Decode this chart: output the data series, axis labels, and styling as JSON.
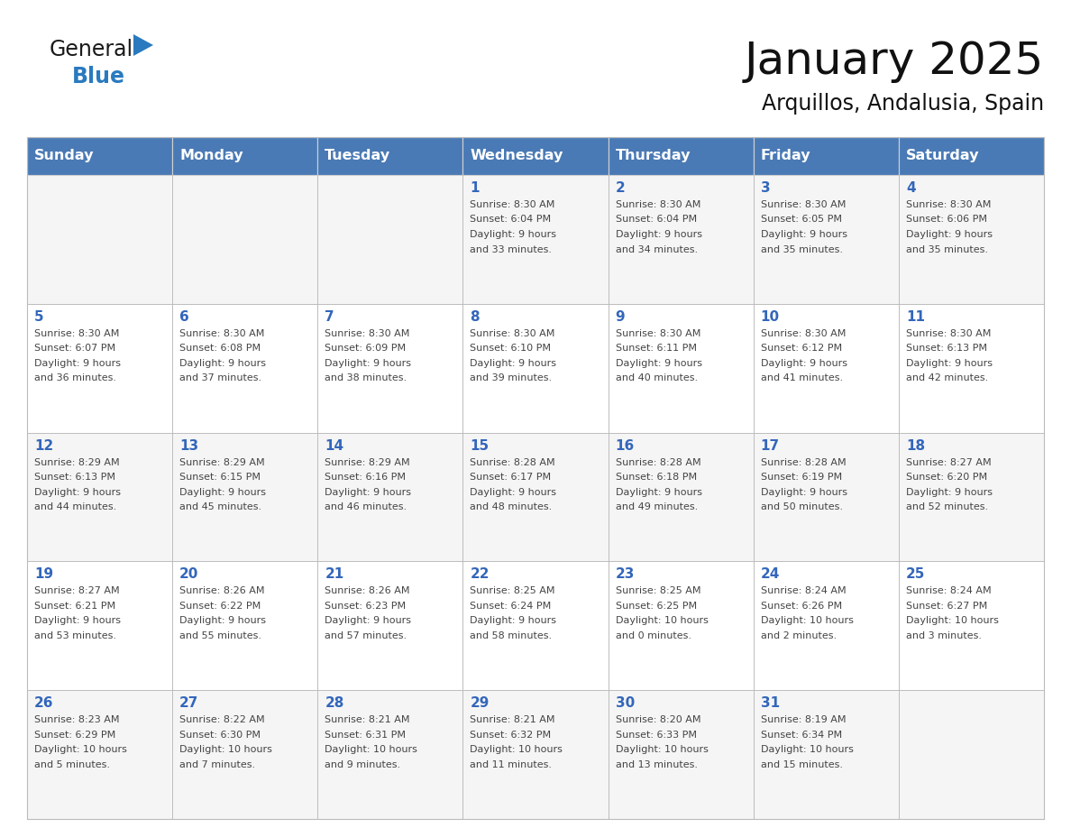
{
  "title": "January 2025",
  "subtitle": "Arquillos, Andalusia, Spain",
  "days_of_week": [
    "Sunday",
    "Monday",
    "Tuesday",
    "Wednesday",
    "Thursday",
    "Friday",
    "Saturday"
  ],
  "header_bg": "#4a7ab5",
  "header_text": "#ffffff",
  "cell_bg_even": "#f5f5f5",
  "cell_bg_odd": "#ffffff",
  "cell_border": "#bbbbbb",
  "day_number_color": "#3366bb",
  "info_text_color": "#444444",
  "title_color": "#111111",
  "logo_general_color": "#1a1a1a",
  "logo_blue_color": "#2a7abf",
  "calendar_data": [
    [
      null,
      null,
      null,
      {
        "day": 1,
        "sunrise": "8:30 AM",
        "sunset": "6:04 PM",
        "daylight": "9 hours",
        "daylight2": "and 33 minutes."
      },
      {
        "day": 2,
        "sunrise": "8:30 AM",
        "sunset": "6:04 PM",
        "daylight": "9 hours",
        "daylight2": "and 34 minutes."
      },
      {
        "day": 3,
        "sunrise": "8:30 AM",
        "sunset": "6:05 PM",
        "daylight": "9 hours",
        "daylight2": "and 35 minutes."
      },
      {
        "day": 4,
        "sunrise": "8:30 AM",
        "sunset": "6:06 PM",
        "daylight": "9 hours",
        "daylight2": "and 35 minutes."
      }
    ],
    [
      {
        "day": 5,
        "sunrise": "8:30 AM",
        "sunset": "6:07 PM",
        "daylight": "9 hours",
        "daylight2": "and 36 minutes."
      },
      {
        "day": 6,
        "sunrise": "8:30 AM",
        "sunset": "6:08 PM",
        "daylight": "9 hours",
        "daylight2": "and 37 minutes."
      },
      {
        "day": 7,
        "sunrise": "8:30 AM",
        "sunset": "6:09 PM",
        "daylight": "9 hours",
        "daylight2": "and 38 minutes."
      },
      {
        "day": 8,
        "sunrise": "8:30 AM",
        "sunset": "6:10 PM",
        "daylight": "9 hours",
        "daylight2": "and 39 minutes."
      },
      {
        "day": 9,
        "sunrise": "8:30 AM",
        "sunset": "6:11 PM",
        "daylight": "9 hours",
        "daylight2": "and 40 minutes."
      },
      {
        "day": 10,
        "sunrise": "8:30 AM",
        "sunset": "6:12 PM",
        "daylight": "9 hours",
        "daylight2": "and 41 minutes."
      },
      {
        "day": 11,
        "sunrise": "8:30 AM",
        "sunset": "6:13 PM",
        "daylight": "9 hours",
        "daylight2": "and 42 minutes."
      }
    ],
    [
      {
        "day": 12,
        "sunrise": "8:29 AM",
        "sunset": "6:13 PM",
        "daylight": "9 hours",
        "daylight2": "and 44 minutes."
      },
      {
        "day": 13,
        "sunrise": "8:29 AM",
        "sunset": "6:15 PM",
        "daylight": "9 hours",
        "daylight2": "and 45 minutes."
      },
      {
        "day": 14,
        "sunrise": "8:29 AM",
        "sunset": "6:16 PM",
        "daylight": "9 hours",
        "daylight2": "and 46 minutes."
      },
      {
        "day": 15,
        "sunrise": "8:28 AM",
        "sunset": "6:17 PM",
        "daylight": "9 hours",
        "daylight2": "and 48 minutes."
      },
      {
        "day": 16,
        "sunrise": "8:28 AM",
        "sunset": "6:18 PM",
        "daylight": "9 hours",
        "daylight2": "and 49 minutes."
      },
      {
        "day": 17,
        "sunrise": "8:28 AM",
        "sunset": "6:19 PM",
        "daylight": "9 hours",
        "daylight2": "and 50 minutes."
      },
      {
        "day": 18,
        "sunrise": "8:27 AM",
        "sunset": "6:20 PM",
        "daylight": "9 hours",
        "daylight2": "and 52 minutes."
      }
    ],
    [
      {
        "day": 19,
        "sunrise": "8:27 AM",
        "sunset": "6:21 PM",
        "daylight": "9 hours",
        "daylight2": "and 53 minutes."
      },
      {
        "day": 20,
        "sunrise": "8:26 AM",
        "sunset": "6:22 PM",
        "daylight": "9 hours",
        "daylight2": "and 55 minutes."
      },
      {
        "day": 21,
        "sunrise": "8:26 AM",
        "sunset": "6:23 PM",
        "daylight": "9 hours",
        "daylight2": "and 57 minutes."
      },
      {
        "day": 22,
        "sunrise": "8:25 AM",
        "sunset": "6:24 PM",
        "daylight": "9 hours",
        "daylight2": "and 58 minutes."
      },
      {
        "day": 23,
        "sunrise": "8:25 AM",
        "sunset": "6:25 PM",
        "daylight": "10 hours",
        "daylight2": "and 0 minutes."
      },
      {
        "day": 24,
        "sunrise": "8:24 AM",
        "sunset": "6:26 PM",
        "daylight": "10 hours",
        "daylight2": "and 2 minutes."
      },
      {
        "day": 25,
        "sunrise": "8:24 AM",
        "sunset": "6:27 PM",
        "daylight": "10 hours",
        "daylight2": "and 3 minutes."
      }
    ],
    [
      {
        "day": 26,
        "sunrise": "8:23 AM",
        "sunset": "6:29 PM",
        "daylight": "10 hours",
        "daylight2": "and 5 minutes."
      },
      {
        "day": 27,
        "sunrise": "8:22 AM",
        "sunset": "6:30 PM",
        "daylight": "10 hours",
        "daylight2": "and 7 minutes."
      },
      {
        "day": 28,
        "sunrise": "8:21 AM",
        "sunset": "6:31 PM",
        "daylight": "10 hours",
        "daylight2": "and 9 minutes."
      },
      {
        "day": 29,
        "sunrise": "8:21 AM",
        "sunset": "6:32 PM",
        "daylight": "10 hours",
        "daylight2": "and 11 minutes."
      },
      {
        "day": 30,
        "sunrise": "8:20 AM",
        "sunset": "6:33 PM",
        "daylight": "10 hours",
        "daylight2": "and 13 minutes."
      },
      {
        "day": 31,
        "sunrise": "8:19 AM",
        "sunset": "6:34 PM",
        "daylight": "10 hours",
        "daylight2": "and 15 minutes."
      },
      null
    ]
  ]
}
